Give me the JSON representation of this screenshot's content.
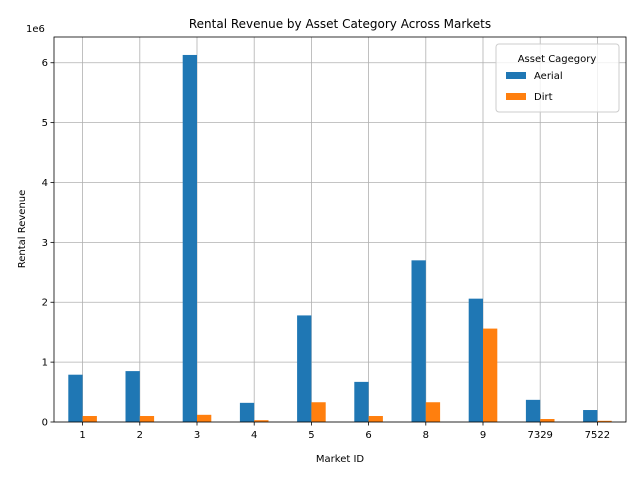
{
  "chart_data": {
    "type": "bar",
    "title": "Rental Revenue by Asset Category Across Markets",
    "xlabel": "Market ID",
    "ylabel": "Rental Revenue",
    "offset_label": "1e6",
    "categories": [
      "1",
      "2",
      "3",
      "4",
      "5",
      "6",
      "8",
      "9",
      "7329",
      "7522"
    ],
    "series": [
      {
        "name": "Aerial",
        "color": "#1f77b4",
        "values": [
          790000,
          850000,
          6130000,
          320000,
          1780000,
          670000,
          2700000,
          2060000,
          370000,
          200000
        ]
      },
      {
        "name": "Dirt",
        "color": "#ff7f0e",
        "values": [
          100000,
          100000,
          120000,
          30000,
          330000,
          100000,
          330000,
          1560000,
          50000,
          20000
        ]
      }
    ],
    "ylim": [
      0,
      6430000
    ],
    "yticks": [
      0,
      1000000,
      2000000,
      3000000,
      4000000,
      5000000,
      6000000
    ],
    "ytick_labels": [
      "0",
      "1",
      "2",
      "3",
      "4",
      "5",
      "6"
    ],
    "grid": true,
    "legend": {
      "title": "Asset Cagegory",
      "placement": "top-right"
    }
  }
}
